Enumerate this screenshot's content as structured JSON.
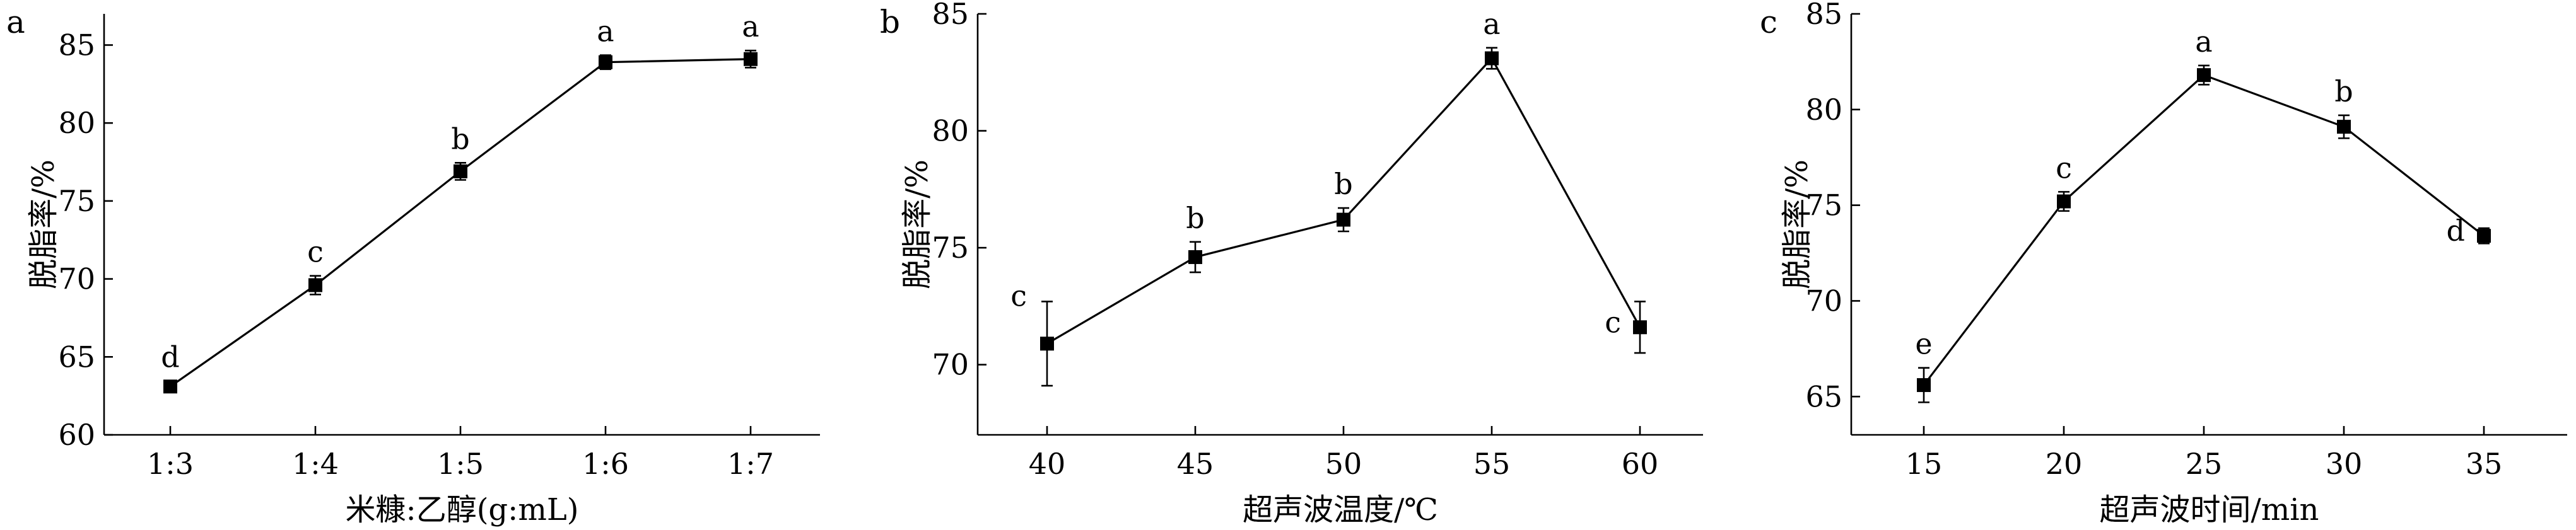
{
  "chart_data": [
    {
      "type": "line",
      "panel_label": "a",
      "xlabel": "米糠:乙醇(g:mL)",
      "ylabel": "脱脂率/%",
      "categories": [
        "1:3",
        "1:4",
        "1:5",
        "1:6",
        "1:7"
      ],
      "values": [
        63.1,
        69.6,
        76.9,
        83.9,
        84.1
      ],
      "errors": [
        0.35,
        0.6,
        0.55,
        0.45,
        0.55
      ],
      "significance": [
        "d",
        "c",
        "b",
        "a",
        "a"
      ],
      "ylim": [
        60,
        87
      ],
      "yticks": [
        60,
        65,
        70,
        75,
        80,
        85
      ],
      "grid": false
    },
    {
      "type": "line",
      "panel_label": "b",
      "xlabel": "超声波温度/℃",
      "ylabel": "脱脂率/%",
      "categories": [
        "40",
        "45",
        "50",
        "55",
        "60"
      ],
      "values": [
        70.9,
        74.6,
        76.2,
        83.1,
        71.6
      ],
      "errors": [
        1.8,
        0.65,
        0.5,
        0.45,
        1.1
      ],
      "significance": [
        "c",
        "b",
        "b",
        "a",
        "c"
      ],
      "ylim": [
        67,
        85
      ],
      "yticks": [
        70,
        75,
        80,
        85
      ],
      "grid": false
    },
    {
      "type": "line",
      "panel_label": "c",
      "xlabel": "超声波时间/min",
      "ylabel": "脱脂率/%",
      "categories": [
        "15",
        "20",
        "25",
        "30",
        "35"
      ],
      "values": [
        65.6,
        75.2,
        81.8,
        79.1,
        73.4
      ],
      "errors": [
        0.9,
        0.5,
        0.5,
        0.6,
        0.4
      ],
      "significance": [
        "e",
        "c",
        "a",
        "b",
        "d"
      ],
      "ylim": [
        63,
        85
      ],
      "yticks": [
        65,
        70,
        75,
        80,
        85
      ],
      "grid": false
    }
  ]
}
